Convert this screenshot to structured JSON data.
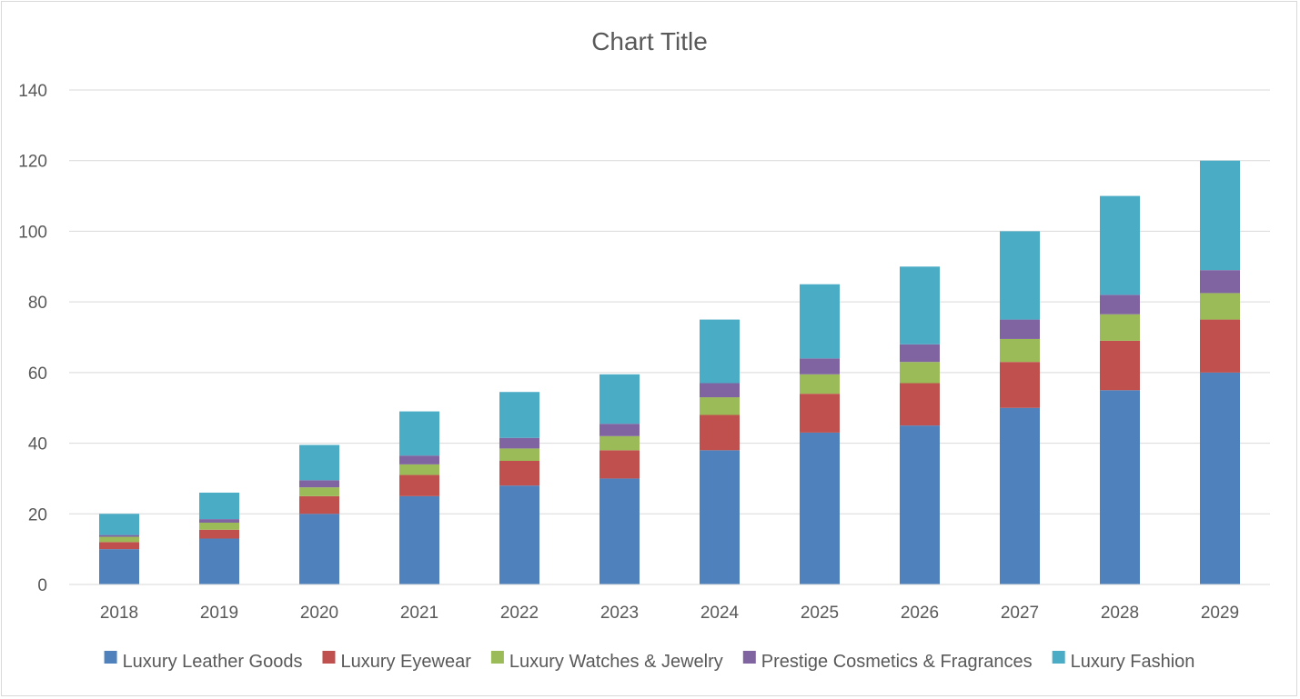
{
  "chart_data": {
    "type": "bar",
    "stacked": true,
    "title": "Chart Title",
    "xlabel": "",
    "ylabel": "",
    "ylim": [
      0,
      140
    ],
    "y_ticks": [
      0,
      20,
      40,
      60,
      80,
      100,
      120,
      140
    ],
    "grid": true,
    "legend_position": "bottom",
    "categories": [
      "2018",
      "2019",
      "2020",
      "2021",
      "2022",
      "2023",
      "2024",
      "2025",
      "2026",
      "2027",
      "2028",
      "2029"
    ],
    "series": [
      {
        "name": "Luxury Leather Goods",
        "color": "#4f81bd",
        "values": [
          10,
          13,
          20,
          25,
          28,
          30,
          38,
          43,
          45,
          50,
          55,
          60
        ]
      },
      {
        "name": "Luxury Eyewear",
        "color": "#c0504d",
        "values": [
          2,
          2.5,
          5,
          6,
          7,
          8,
          10,
          11,
          12,
          13,
          14,
          15
        ]
      },
      {
        "name": "Luxury Watches & Jewelry",
        "color": "#9bbb59",
        "values": [
          1.5,
          2,
          2.5,
          3,
          3.5,
          4,
          5,
          5.5,
          6,
          6.5,
          7.5,
          7.5
        ]
      },
      {
        "name": "Prestige Cosmetics & Fragrances",
        "color": "#8064a2",
        "values": [
          0.5,
          1,
          2,
          2.5,
          3,
          3.5,
          4,
          4.5,
          5,
          5.5,
          5.5,
          6.5
        ]
      },
      {
        "name": "Luxury Fashion",
        "color": "#4bacc6",
        "values": [
          6,
          7.5,
          10,
          12.5,
          13,
          14,
          18,
          21,
          22,
          25,
          28,
          31
        ]
      }
    ]
  }
}
